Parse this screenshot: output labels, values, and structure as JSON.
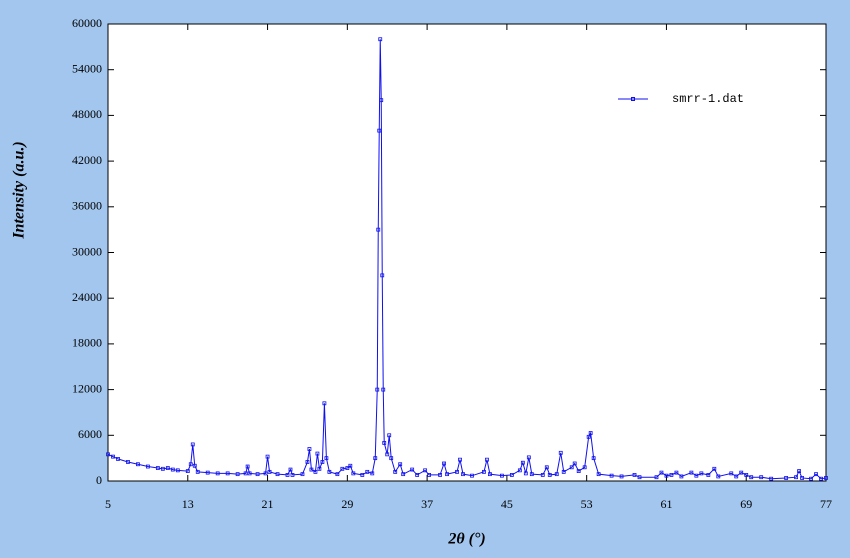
{
  "chart_data": {
    "type": "line",
    "x_label": "2θ (°)",
    "y_label": "Intensity (a.u.)",
    "x": [
      5,
      5.5,
      6,
      7,
      8,
      9,
      10,
      10.5,
      11,
      11.5,
      12,
      13,
      13.3,
      13.5,
      13.7,
      14,
      15,
      16,
      17,
      18,
      18.8,
      19,
      19.2,
      20,
      20.8,
      21,
      21.2,
      22,
      23,
      23.3,
      23.5,
      24.5,
      25,
      25.2,
      25.4,
      25.8,
      26,
      26.2,
      26.5,
      26.7,
      26.9,
      27.2,
      28,
      28.5,
      29,
      29.3,
      29.6,
      30.5,
      31,
      31.5,
      31.8,
      32,
      32.1,
      32.2,
      32.3,
      32.4,
      32.5,
      32.6,
      32.7,
      33,
      33.2,
      33.4,
      33.8,
      34.3,
      34.6,
      35.5,
      36,
      36.8,
      37.2,
      38.3,
      38.7,
      39,
      40,
      40.3,
      40.6,
      41.5,
      42.7,
      43,
      43.3,
      44.5,
      45.5,
      46.3,
      46.6,
      46.9,
      47.2,
      47.5,
      48.6,
      49,
      49.3,
      50,
      50.4,
      50.7,
      51.5,
      51.8,
      52.2,
      52.8,
      53.2,
      53.4,
      53.7,
      54.2,
      55.5,
      56.5,
      57.8,
      58.3,
      60,
      60.5,
      61,
      61.5,
      62,
      62.5,
      63.5,
      64,
      64.5,
      65.2,
      65.8,
      66.2,
      67.5,
      68,
      68.5,
      69,
      69.5,
      70.5,
      71.5,
      73,
      74,
      74.3,
      74.6,
      75.5,
      76,
      76.5,
      77
    ],
    "series": [
      {
        "name": "smrr-1.dat",
        "color": "#1010ee",
        "values": [
          3500,
          3200,
          2900,
          2500,
          2200,
          1900,
          1700,
          1600,
          1700,
          1500,
          1400,
          1300,
          2200,
          4800,
          2000,
          1200,
          1100,
          1000,
          1000,
          900,
          1000,
          1900,
          1000,
          900,
          1000,
          3200,
          1200,
          900,
          800,
          1500,
          800,
          900,
          2500,
          4200,
          1500,
          1200,
          3600,
          1600,
          2500,
          10200,
          3000,
          1200,
          900,
          1600,
          1700,
          2000,
          1000,
          800,
          1200,
          1000,
          3000,
          12000,
          33000,
          46000,
          58000,
          50000,
          27000,
          12000,
          5000,
          3500,
          6000,
          3000,
          1200,
          2200,
          900,
          1500,
          800,
          1400,
          800,
          800,
          2300,
          900,
          1200,
          2800,
          900,
          700,
          1200,
          2800,
          900,
          700,
          800,
          1400,
          2400,
          1000,
          3100,
          900,
          800,
          1800,
          800,
          900,
          3700,
          1200,
          1800,
          2300,
          1300,
          1800,
          5800,
          6300,
          3000,
          900,
          700,
          600,
          800,
          500,
          500,
          1100,
          700,
          800,
          1100,
          600,
          1100,
          700,
          1000,
          800,
          1600,
          600,
          1000,
          600,
          1100,
          800,
          500,
          500,
          300,
          400,
          500,
          1300,
          400,
          300,
          900,
          300,
          400
        ]
      }
    ],
    "xlim": [
      5,
      77
    ],
    "ylim": [
      0,
      60000
    ],
    "xticks": [
      5,
      13,
      21,
      29,
      37,
      45,
      53,
      61,
      69,
      77
    ],
    "yticks": [
      0,
      6000,
      12000,
      18000,
      24000,
      30000,
      36000,
      42000,
      48000,
      54000,
      60000
    ],
    "legend": "upper right"
  }
}
